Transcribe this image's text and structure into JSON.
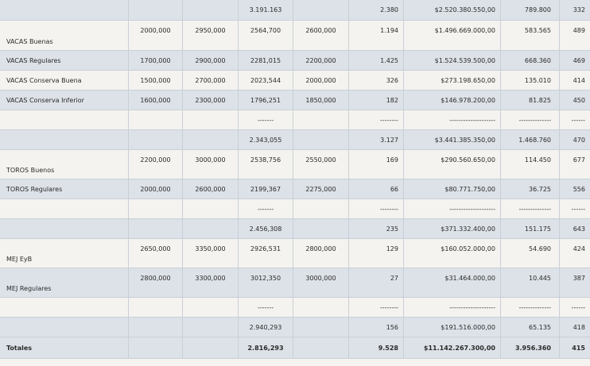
{
  "rows": [
    {
      "name": "",
      "c1": "",
      "c2": "",
      "c3": "3.191.163",
      "c4": "",
      "c5": "2.380",
      "c6": "$2.520.380.550,00",
      "c7": "789.800",
      "c8": "332"
    },
    {
      "name": "VACAS Buenas",
      "c1": "2000,000",
      "c2": "2950,000",
      "c3": "2564,700",
      "c4": "2600,000",
      "c5": "1.194",
      "c6": "$1.496.669.000,00",
      "c7": "583.565",
      "c8": "489"
    },
    {
      "name": "VACAS Regulares",
      "c1": "1700,000",
      "c2": "2900,000",
      "c3": "2281,015",
      "c4": "2200,000",
      "c5": "1.425",
      "c6": "$1.524.539.500,00",
      "c7": "668.360",
      "c8": "469"
    },
    {
      "name": "VACAS Conserva Buena",
      "c1": "1500,000",
      "c2": "2700,000",
      "c3": "2023,544",
      "c4": "2000,000",
      "c5": "326",
      "c6": "$273.198.650,00",
      "c7": "135.010",
      "c8": "414"
    },
    {
      "name": "VACAS Conserva Inferior",
      "c1": "1600,000",
      "c2": "2300,000",
      "c3": "1796,251",
      "c4": "1850,000",
      "c5": "182",
      "c6": "$146.978.200,00",
      "c7": "81.825",
      "c8": "450"
    },
    {
      "name": "",
      "c1": "",
      "c2": "",
      "c3": "-------",
      "c4": "",
      "c5": "--------",
      "c6": "--------------------",
      "c7": "--------------",
      "c8": "------"
    },
    {
      "name": "",
      "c1": "",
      "c2": "",
      "c3": "2.343,055",
      "c4": "",
      "c5": "3.127",
      "c6": "$3.441.385.350,00",
      "c7": "1.468.760",
      "c8": "470"
    },
    {
      "name": "TOROS Buenos",
      "c1": "2200,000",
      "c2": "3000,000",
      "c3": "2538,756",
      "c4": "2550,000",
      "c5": "169",
      "c6": "$290.560.650,00",
      "c7": "114.450",
      "c8": "677"
    },
    {
      "name": "TOROS Regulares",
      "c1": "2000,000",
      "c2": "2600,000",
      "c3": "2199,367",
      "c4": "2275,000",
      "c5": "66",
      "c6": "$80.771.750,00",
      "c7": "36.725",
      "c8": "556"
    },
    {
      "name": "",
      "c1": "",
      "c2": "",
      "c3": "-------",
      "c4": "",
      "c5": "--------",
      "c6": "--------------------",
      "c7": "--------------",
      "c8": "------"
    },
    {
      "name": "",
      "c1": "",
      "c2": "",
      "c3": "2.456,308",
      "c4": "",
      "c5": "235",
      "c6": "$371.332.400,00",
      "c7": "151.175",
      "c8": "643"
    },
    {
      "name": "MEJ EyB",
      "c1": "2650,000",
      "c2": "3350,000",
      "c3": "2926,531",
      "c4": "2800,000",
      "c5": "129",
      "c6": "$160.052.000,00",
      "c7": "54.690",
      "c8": "424"
    },
    {
      "name": "MEJ Regulares",
      "c1": "2800,000",
      "c2": "3300,000",
      "c3": "3012,350",
      "c4": "3000,000",
      "c5": "27",
      "c6": "$31.464.000,00",
      "c7": "10.445",
      "c8": "387"
    },
    {
      "name": "",
      "c1": "",
      "c2": "",
      "c3": "-------",
      "c4": "",
      "c5": "--------",
      "c6": "--------------------",
      "c7": "--------------",
      "c8": "------"
    },
    {
      "name": "",
      "c1": "",
      "c2": "",
      "c3": "2.940,293",
      "c4": "",
      "c5": "156",
      "c6": "$191.516.000,00",
      "c7": "65.135",
      "c8": "418"
    },
    {
      "name": "Totales",
      "c1": "",
      "c2": "",
      "c3": "2.816,293",
      "c4": "",
      "c5": "9.528",
      "c6": "$11.142.267.300,00",
      "c7": "3.956.360",
      "c8": "415"
    }
  ]
}
